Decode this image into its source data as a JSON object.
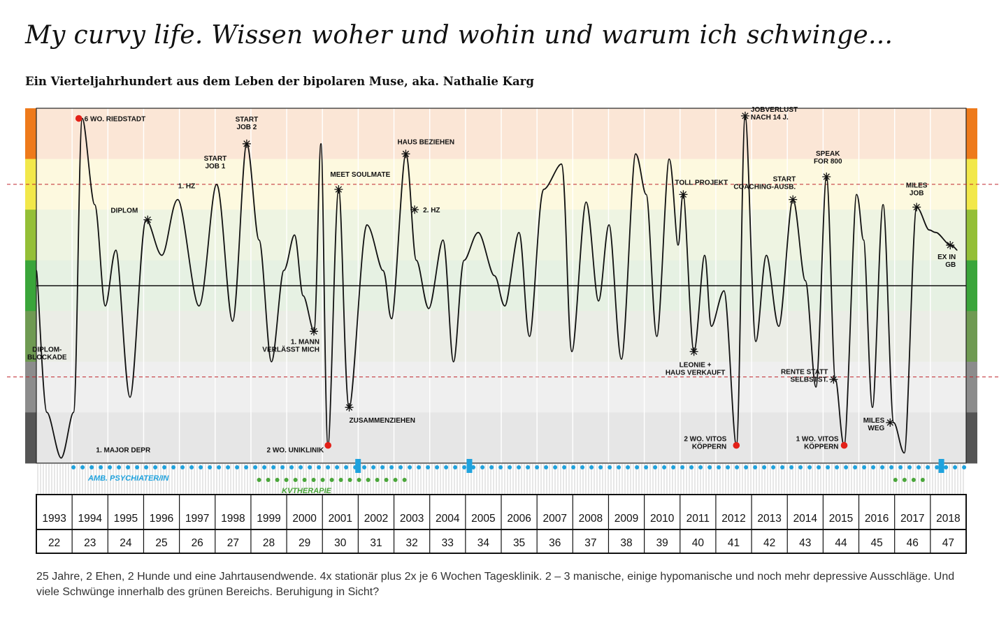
{
  "header": {
    "title": "My curvy life. Wissen woher und wohin und warum ich schwinge...",
    "subtitle": "Ein Vierteljahrhundert aus dem Leben der bipolaren Muse, aka. Nathalie Karg"
  },
  "caption": "25 Jahre, 2 Ehen, 2 Hunde und eine Jahrtausendwende. 4x stationär plus 2x je 6 Wochen Tagesklinik. 2 – 3 manische, einige hypomanische und noch mehr depressive Ausschläge. Und viele Schwünge innerhalb des grünen Bereichs. Beruhigung in Sicht?",
  "colors": {
    "mood_bands": [
      "#ee7a1b",
      "#f2e84a",
      "#94bf36",
      "#3aa53a",
      "#6f9a52",
      "#8c8c8c",
      "#555555"
    ],
    "mood_band_fills": [
      "#fbe6d6",
      "#fdf9df",
      "#eef4e2",
      "#e6f1e3",
      "#ebede6",
      "#efefef",
      "#e6e6e6"
    ],
    "curve": "#111111",
    "crisis_marker": "#e32119",
    "threshold_line": "#c0262d",
    "psychiatrist": "#1fa2dd",
    "therapy": "#4aa63a"
  },
  "chart_data": {
    "type": "line",
    "x_unit": "year",
    "xlim": [
      1992.7,
      2019.0
    ],
    "years": [
      "1993",
      "1994",
      "1995",
      "1996",
      "1997",
      "1998",
      "1999",
      "2000",
      "2001",
      "2002",
      "2003",
      "2004",
      "2005",
      "2006",
      "2007",
      "2008",
      "2009",
      "2010",
      "2011",
      "2012",
      "2013",
      "2014",
      "2015",
      "2016",
      "2017",
      "2018"
    ],
    "ages": [
      "22",
      "23",
      "24",
      "25",
      "26",
      "27",
      "28",
      "29",
      "30",
      "31",
      "32",
      "33",
      "34",
      "35",
      "36",
      "37",
      "38",
      "39",
      "40",
      "41",
      "42",
      "43",
      "44",
      "45",
      "46",
      "47"
    ],
    "ylim": [
      -3.5,
      3.5
    ],
    "mood_band_count": 7,
    "thresholds": [
      2.0,
      -1.8
    ],
    "curve": [
      [
        1992.7,
        0.3
      ],
      [
        1993.0,
        -2.5
      ],
      [
        1993.4,
        -3.4
      ],
      [
        1993.75,
        -2.5
      ],
      [
        1994.0,
        3.3
      ],
      [
        1994.35,
        1.6
      ],
      [
        1994.65,
        -0.4
      ],
      [
        1994.95,
        0.7
      ],
      [
        1995.35,
        -2.2
      ],
      [
        1995.8,
        1.3
      ],
      [
        1996.25,
        0.6
      ],
      [
        1996.7,
        1.7
      ],
      [
        1997.3,
        -0.4
      ],
      [
        1997.8,
        2.0
      ],
      [
        1998.25,
        -0.7
      ],
      [
        1998.65,
        2.8
      ],
      [
        1999.0,
        0.9
      ],
      [
        1999.35,
        -1.5
      ],
      [
        1999.7,
        0.3
      ],
      [
        2000.0,
        1.0
      ],
      [
        2000.25,
        -0.2
      ],
      [
        2000.55,
        -0.9
      ],
      [
        2000.75,
        2.8
      ],
      [
        2000.95,
        -3.15
      ],
      [
        2001.25,
        1.9
      ],
      [
        2001.55,
        -2.4
      ],
      [
        2002.05,
        1.2
      ],
      [
        2002.5,
        0.3
      ],
      [
        2002.75,
        -0.65
      ],
      [
        2003.15,
        2.6
      ],
      [
        2003.45,
        0.5
      ],
      [
        2003.8,
        -0.45
      ],
      [
        2004.2,
        0.9
      ],
      [
        2004.5,
        -1.5
      ],
      [
        2004.8,
        0.5
      ],
      [
        2005.2,
        1.05
      ],
      [
        2005.65,
        0.2
      ],
      [
        2005.95,
        -0.4
      ],
      [
        2006.35,
        1.05
      ],
      [
        2006.65,
        -1.0
      ],
      [
        2007.05,
        1.9
      ],
      [
        2007.55,
        2.4
      ],
      [
        2007.85,
        -1.3
      ],
      [
        2008.25,
        1.65
      ],
      [
        2008.6,
        -0.3
      ],
      [
        2008.9,
        1.2
      ],
      [
        2009.25,
        -1.45
      ],
      [
        2009.65,
        2.6
      ],
      [
        2009.95,
        1.8
      ],
      [
        2010.25,
        -1.0
      ],
      [
        2010.6,
        2.5
      ],
      [
        2010.85,
        0.8
      ],
      [
        2011.0,
        1.8
      ],
      [
        2011.3,
        -1.3
      ],
      [
        2011.6,
        0.6
      ],
      [
        2011.8,
        -0.8
      ],
      [
        2012.15,
        -0.1
      ],
      [
        2012.5,
        -3.15
      ],
      [
        2012.75,
        3.35
      ],
      [
        2013.05,
        -1.1
      ],
      [
        2013.35,
        0.6
      ],
      [
        2013.7,
        -0.8
      ],
      [
        2014.1,
        1.7
      ],
      [
        2014.45,
        0.1
      ],
      [
        2014.75,
        -2.0
      ],
      [
        2015.05,
        2.15
      ],
      [
        2015.3,
        -1.85
      ],
      [
        2015.55,
        -3.15
      ],
      [
        2015.9,
        1.8
      ],
      [
        2016.1,
        0.9
      ],
      [
        2016.35,
        -2.4
      ],
      [
        2016.65,
        1.6
      ],
      [
        2016.95,
        -2.7
      ],
      [
        2017.25,
        -3.3
      ],
      [
        2017.6,
        1.55
      ],
      [
        2017.95,
        1.1
      ],
      [
        2018.15,
        1.05
      ],
      [
        2018.55,
        0.8
      ],
      [
        2018.75,
        0.7
      ]
    ],
    "events": [
      {
        "label": "6 WO. RIEDSTADT",
        "year": 1993.9,
        "value": 3.3,
        "marker": "dot"
      },
      {
        "label": "DIPLOM",
        "year": 1995.85,
        "value": 1.3,
        "marker": "star"
      },
      {
        "label": "1. HZ",
        "year": 1996.75,
        "value": 1.7,
        "marker": "none"
      },
      {
        "label": "START\nJOB 1",
        "year": 1997.8,
        "value": 2.0,
        "marker": "none"
      },
      {
        "label": "START\nJOB 2",
        "year": 1998.65,
        "value": 2.8,
        "marker": "star"
      },
      {
        "label": "1. MANN\nVERLÄSST MICH",
        "year": 2000.55,
        "value": -0.9,
        "marker": "star"
      },
      {
        "label": "2 WO. UNIKLINIK",
        "year": 2000.95,
        "value": -3.15,
        "marker": "dot"
      },
      {
        "label": "MEET SOULMATE",
        "year": 2001.25,
        "value": 1.9,
        "marker": "star"
      },
      {
        "label": "ZUSAMMENZIEHEN",
        "year": 2001.55,
        "value": -2.4,
        "marker": "star"
      },
      {
        "label": "HAUS BEZIEHEN",
        "year": 2003.15,
        "value": 2.6,
        "marker": "star"
      },
      {
        "label": "2. HZ",
        "year": 2003.4,
        "value": 1.5,
        "marker": "star"
      },
      {
        "label": "TOLL PROJEKT",
        "year": 2011.0,
        "value": 1.8,
        "marker": "star"
      },
      {
        "label": "LEONIE +\nHAUS VERKAUFT",
        "year": 2011.3,
        "value": -1.3,
        "marker": "star"
      },
      {
        "label": "JOBVERLUST\nNACH 14 J.",
        "year": 2012.75,
        "value": 3.35,
        "marker": "star"
      },
      {
        "label": "2 WO. VITOS\nKÖPPERN",
        "year": 2012.5,
        "value": -3.15,
        "marker": "dot"
      },
      {
        "label": "START\nCOACHING-AUSB.",
        "year": 2014.1,
        "value": 1.7,
        "marker": "star"
      },
      {
        "label": "SPEAK\nFOR 800",
        "year": 2015.05,
        "value": 2.15,
        "marker": "star"
      },
      {
        "label": "RENTE STATT\nSELBSTST.",
        "year": 2015.25,
        "value": -1.85,
        "marker": "star"
      },
      {
        "label": "1 WO. VITOS\nKÖPPERN",
        "year": 2015.55,
        "value": -3.15,
        "marker": "dot"
      },
      {
        "label": "MILES\nJOB",
        "year": 2017.6,
        "value": 1.55,
        "marker": "star"
      },
      {
        "label": "MILES\nWEG",
        "year": 2016.85,
        "value": -2.7,
        "marker": "star"
      },
      {
        "label": "EX IN\nGB",
        "year": 2018.55,
        "value": 0.8,
        "marker": "star"
      },
      {
        "label": "DIPLOM-\nBLOCKADE",
        "year": 1993.2,
        "value": -1.3,
        "marker": "none"
      },
      {
        "label": "1. MAJOR DEPR",
        "year": 1993.4,
        "value": -3.4,
        "marker": "none"
      }
    ],
    "therapies": [
      {
        "label": "AMB. PSYCHIATER/IN",
        "color_key": "psychiatrist",
        "start": 1993.75,
        "end": 2019.0,
        "visits": [
          2001.8,
          2004.95,
          2018.3
        ]
      },
      {
        "label": "KVTHERAPIE",
        "color_key": "therapy",
        "start": 1999.0,
        "end": 2003.2
      },
      {
        "label": "",
        "color_key": "therapy",
        "start": 2017.0,
        "end": 2018.0
      }
    ]
  }
}
